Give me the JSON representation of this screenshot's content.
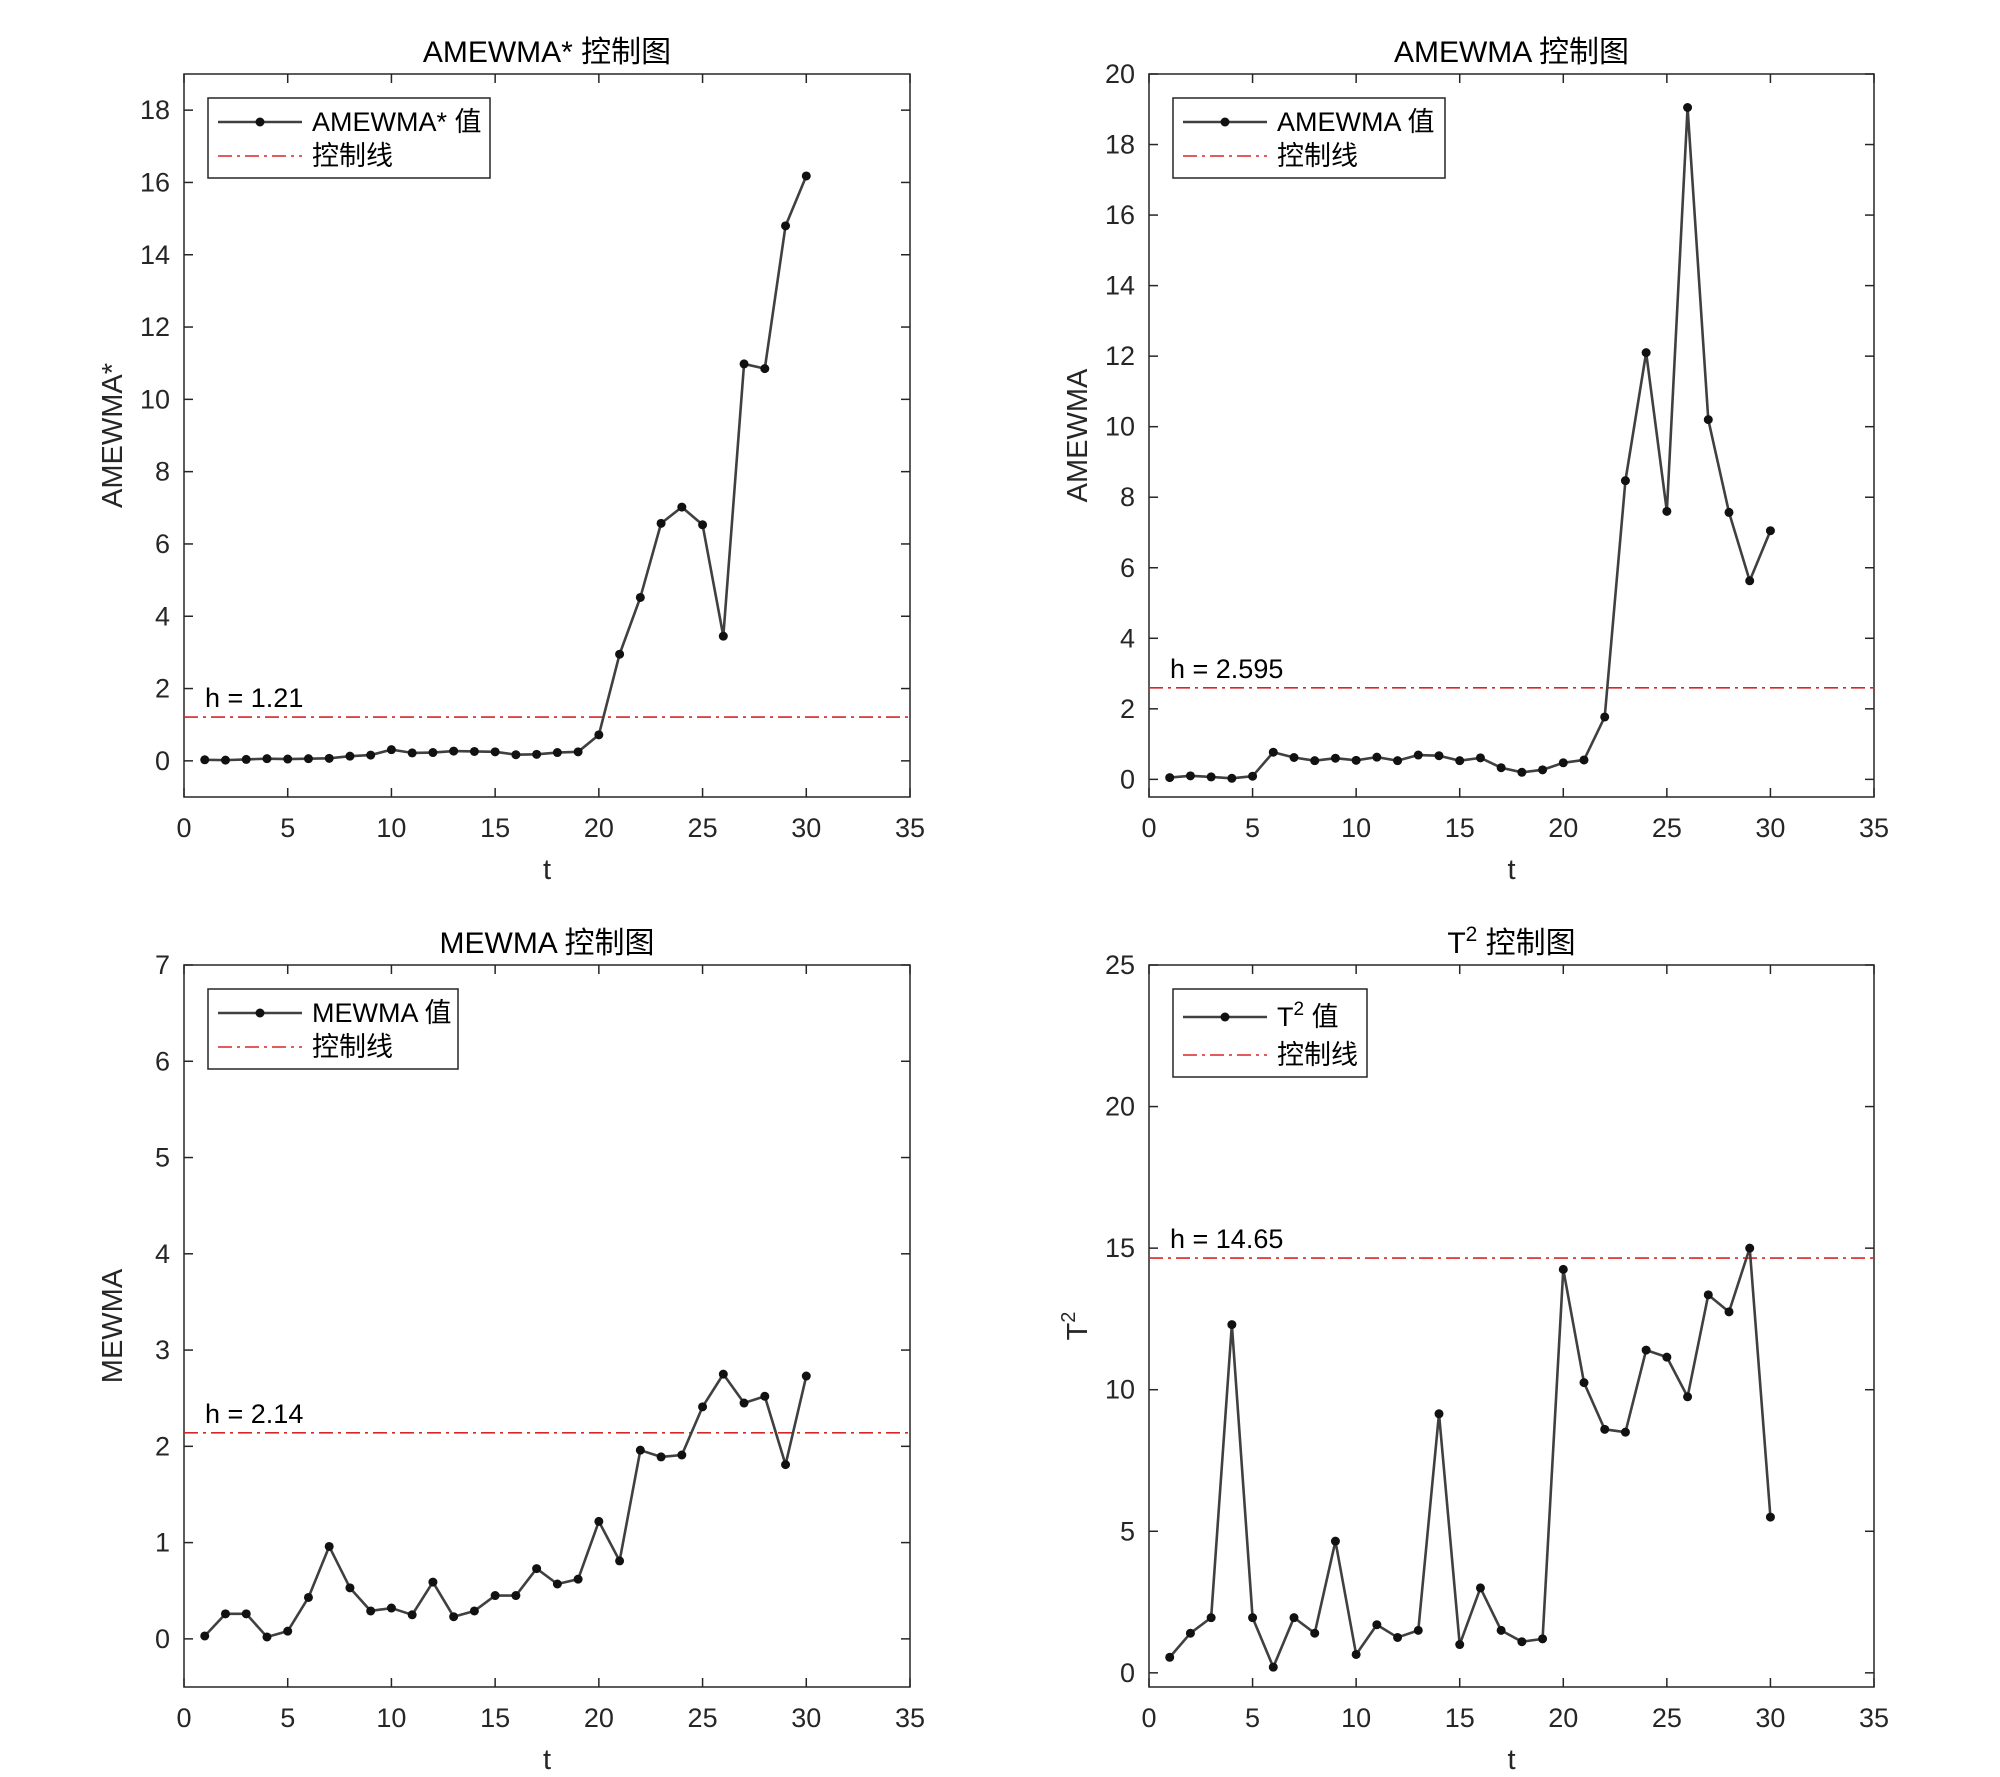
{
  "chart_data": [
    {
      "type": "line",
      "title": "AMEWMA* 控制图",
      "xlabel": "t",
      "ylabel": "AMEWMA*",
      "xlim": [
        0,
        35
      ],
      "ylim": [
        -1,
        19
      ],
      "xticks": [
        0,
        5,
        10,
        15,
        20,
        25,
        30,
        35
      ],
      "yticks": [
        0,
        2,
        4,
        6,
        8,
        10,
        12,
        14,
        16,
        18
      ],
      "legend": {
        "position": "top-left",
        "series_label": "AMEWMA* 值",
        "control_label": "控制线"
      },
      "control_line": {
        "value": 1.21,
        "label": "h = 1.21",
        "color": "#d62728"
      },
      "series": [
        {
          "name": "AMEWMA* 值",
          "color": "#404040",
          "x": [
            1,
            2,
            3,
            4,
            5,
            6,
            7,
            8,
            9,
            10,
            11,
            12,
            13,
            14,
            15,
            16,
            17,
            18,
            19,
            20,
            21,
            22,
            23,
            24,
            25,
            26,
            27,
            28,
            29,
            30
          ],
          "values": [
            0.03,
            0.02,
            0.04,
            0.06,
            0.05,
            0.06,
            0.07,
            0.13,
            0.16,
            0.31,
            0.22,
            0.23,
            0.27,
            0.26,
            0.25,
            0.17,
            0.18,
            0.23,
            0.25,
            0.72,
            2.95,
            4.52,
            6.57,
            7.02,
            6.53,
            3.45,
            10.98,
            10.85,
            14.8,
            16.18
          ]
        }
      ]
    },
    {
      "type": "line",
      "title": "AMEWMA 控制图",
      "xlabel": "t",
      "ylabel": "AMEWMA",
      "xlim": [
        0,
        35
      ],
      "ylim": [
        -0.5,
        20
      ],
      "xticks": [
        0,
        5,
        10,
        15,
        20,
        25,
        30,
        35
      ],
      "yticks": [
        0,
        2,
        4,
        6,
        8,
        10,
        12,
        14,
        16,
        18,
        20
      ],
      "legend": {
        "position": "top-left",
        "series_label": "AMEWMA 值",
        "control_label": "控制线"
      },
      "control_line": {
        "value": 2.595,
        "label": "h = 2.595",
        "color": "#d62728"
      },
      "series": [
        {
          "name": "AMEWMA 值",
          "color": "#404040",
          "x": [
            1,
            2,
            3,
            4,
            5,
            6,
            7,
            8,
            9,
            10,
            11,
            12,
            13,
            14,
            15,
            16,
            17,
            18,
            19,
            20,
            21,
            22,
            23,
            24,
            25,
            26,
            27,
            28,
            29,
            30
          ],
          "values": [
            0.05,
            0.1,
            0.07,
            0.03,
            0.09,
            0.77,
            0.62,
            0.53,
            0.6,
            0.54,
            0.63,
            0.53,
            0.69,
            0.67,
            0.53,
            0.61,
            0.33,
            0.2,
            0.27,
            0.47,
            0.55,
            1.77,
            8.47,
            12.1,
            7.6,
            19.05,
            10.2,
            7.57,
            5.63,
            7.05
          ]
        }
      ]
    },
    {
      "type": "line",
      "title": "MEWMA 控制图",
      "xlabel": "t",
      "ylabel": "MEWMA",
      "xlim": [
        0,
        35
      ],
      "ylim": [
        -0.5,
        7
      ],
      "xticks": [
        0,
        5,
        10,
        15,
        20,
        25,
        30,
        35
      ],
      "yticks": [
        0,
        1,
        2,
        3,
        4,
        5,
        6,
        7
      ],
      "legend": {
        "position": "top-left",
        "series_label": "MEWMA 值",
        "control_label": "控制线"
      },
      "control_line": {
        "value": 2.14,
        "label": "h = 2.14",
        "color": "#d62728"
      },
      "series": [
        {
          "name": "MEWMA 值",
          "color": "#404040",
          "x": [
            1,
            2,
            3,
            4,
            5,
            6,
            7,
            8,
            9,
            10,
            11,
            12,
            13,
            14,
            15,
            16,
            17,
            18,
            19,
            20,
            21,
            22,
            23,
            24,
            25,
            26,
            27,
            28,
            29,
            30
          ],
          "values": [
            0.03,
            0.26,
            0.26,
            0.02,
            0.08,
            0.43,
            0.96,
            0.53,
            0.29,
            0.32,
            0.25,
            0.59,
            0.23,
            0.29,
            0.45,
            0.45,
            0.73,
            0.57,
            0.62,
            1.22,
            0.81,
            1.96,
            1.89,
            1.91,
            2.41,
            2.75,
            2.45,
            2.52,
            1.81,
            2.73
          ]
        }
      ]
    },
    {
      "type": "line",
      "title_main": "T",
      "title_sup": "2",
      "title_rest": " 控制图",
      "xlabel": "t",
      "ylabel_main": "T",
      "ylabel_sup": "2",
      "xlim": [
        0,
        35
      ],
      "ylim": [
        -0.5,
        25
      ],
      "xticks": [
        0,
        5,
        10,
        15,
        20,
        25,
        30,
        35
      ],
      "yticks": [
        0,
        5,
        10,
        15,
        20,
        25
      ],
      "legend": {
        "position": "top-left",
        "series_label_main": "T",
        "series_label_sup": "2",
        "series_label_rest": " 值",
        "control_label": "控制线"
      },
      "control_line": {
        "value": 14.65,
        "label": "h = 14.65",
        "color": "#d62728"
      },
      "series": [
        {
          "name": "T² 值",
          "color": "#404040",
          "x": [
            1,
            2,
            3,
            4,
            5,
            6,
            7,
            8,
            9,
            10,
            11,
            12,
            13,
            14,
            15,
            16,
            17,
            18,
            19,
            20,
            21,
            22,
            23,
            24,
            25,
            26,
            27,
            28,
            29,
            30
          ],
          "values": [
            0.55,
            1.4,
            1.95,
            12.3,
            1.95,
            0.2,
            1.95,
            1.4,
            4.65,
            0.65,
            1.7,
            1.25,
            1.5,
            9.15,
            1.0,
            3.0,
            1.5,
            1.1,
            1.2,
            14.25,
            10.25,
            8.6,
            8.5,
            11.4,
            11.15,
            9.75,
            13.35,
            12.75,
            15.0,
            5.5
          ]
        }
      ]
    }
  ]
}
